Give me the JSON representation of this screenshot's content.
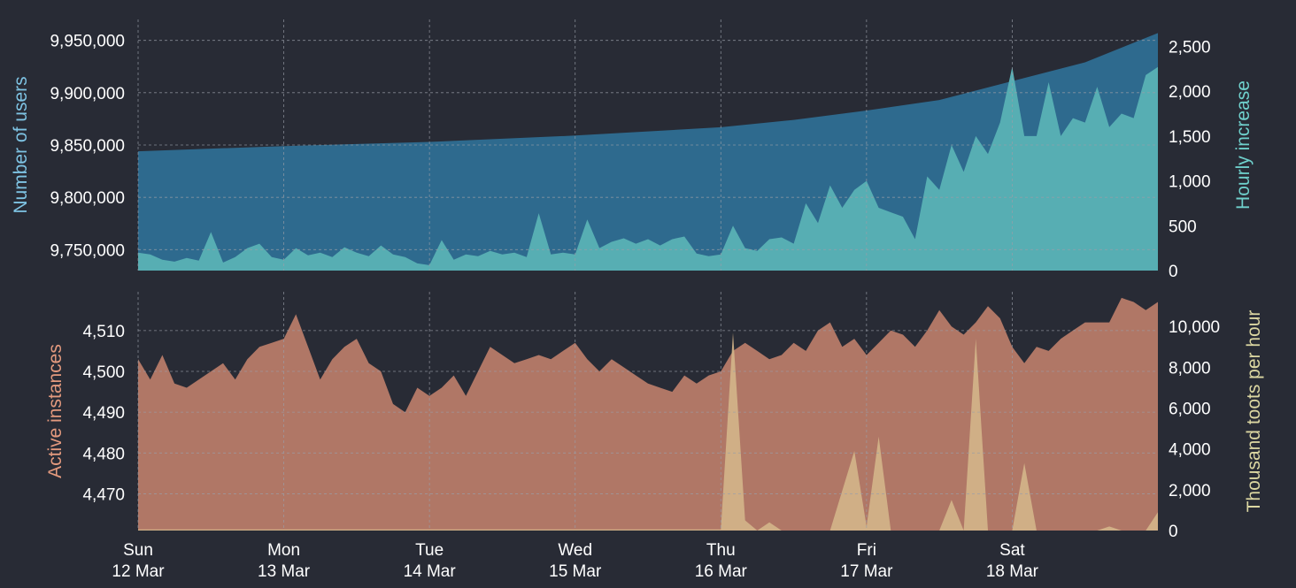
{
  "colors": {
    "background": "#282b35",
    "users_area": "#2e6a8e",
    "hourly_area": "#57aeb3",
    "instances_area": "#b07766",
    "toots_area": "#d4b58a",
    "users_label": "#7ec3e3",
    "hourly_label": "#6fd0cc",
    "instances_label": "#e49a7e",
    "toots_label": "#dcd7a2",
    "tick_text": "#ffffff",
    "grid": "#9a9ea8"
  },
  "chart_data": [
    {
      "type": "area",
      "name": "top-panel",
      "ylabel": "Number of users",
      "y2label": "Hourly increase",
      "x_range": [
        "2023-03-12T00:00",
        "2023-03-19T00:00"
      ],
      "ylim": [
        9730000,
        9970000
      ],
      "y2lim": [
        0,
        2800
      ],
      "yticks": [
        "9,750,000",
        "9,800,000",
        "9,850,000",
        "9,900,000",
        "9,950,000"
      ],
      "yticks_values": [
        9750000,
        9800000,
        9850000,
        9900000,
        9950000
      ],
      "y2ticks": [
        "0",
        "500",
        "1,000",
        "1,500",
        "2,000",
        "2,500"
      ],
      "y2ticks_values": [
        0,
        500,
        1000,
        1500,
        2000,
        2500
      ],
      "grid": true,
      "series": [
        {
          "name": "",
          "axis": "left",
          "points": [
            [
              "2023-03-12T00:00",
              9844000
            ],
            [
              "2023-03-13T00:00",
              9849000
            ],
            [
              "2023-03-14T00:00",
              9853000
            ],
            [
              "2023-03-15T00:00",
              9859000
            ],
            [
              "2023-03-16T00:00",
              9867000
            ],
            [
              "2023-03-16T12:00",
              9874000
            ],
            [
              "2023-03-17T00:00",
              9883000
            ],
            [
              "2023-03-17T12:00",
              9893000
            ],
            [
              "2023-03-18T00:00",
              9911000
            ],
            [
              "2023-03-18T12:00",
              9929000
            ],
            [
              "2023-03-19T00:00",
              9957000
            ]
          ]
        },
        {
          "name": "",
          "axis": "right",
          "points": [
            [
              "2023-03-12T00:00",
              200
            ],
            [
              "2023-03-12T02:00",
              180
            ],
            [
              "2023-03-12T04:00",
              120
            ],
            [
              "2023-03-12T06:00",
              100
            ],
            [
              "2023-03-12T08:00",
              140
            ],
            [
              "2023-03-12T10:00",
              110
            ],
            [
              "2023-03-12T12:00",
              430
            ],
            [
              "2023-03-12T14:00",
              90
            ],
            [
              "2023-03-12T16:00",
              150
            ],
            [
              "2023-03-12T18:00",
              250
            ],
            [
              "2023-03-12T20:00",
              300
            ],
            [
              "2023-03-12T22:00",
              150
            ],
            [
              "2023-03-13T00:00",
              120
            ],
            [
              "2023-03-13T02:00",
              250
            ],
            [
              "2023-03-13T04:00",
              170
            ],
            [
              "2023-03-13T06:00",
              200
            ],
            [
              "2023-03-13T08:00",
              150
            ],
            [
              "2023-03-13T10:00",
              260
            ],
            [
              "2023-03-13T12:00",
              200
            ],
            [
              "2023-03-13T14:00",
              160
            ],
            [
              "2023-03-13T16:00",
              280
            ],
            [
              "2023-03-13T18:00",
              180
            ],
            [
              "2023-03-13T20:00",
              150
            ],
            [
              "2023-03-13T22:00",
              80
            ],
            [
              "2023-03-14T00:00",
              60
            ],
            [
              "2023-03-14T02:00",
              340
            ],
            [
              "2023-03-14T04:00",
              120
            ],
            [
              "2023-03-14T06:00",
              180
            ],
            [
              "2023-03-14T08:00",
              160
            ],
            [
              "2023-03-14T10:00",
              220
            ],
            [
              "2023-03-14T12:00",
              180
            ],
            [
              "2023-03-14T14:00",
              200
            ],
            [
              "2023-03-14T16:00",
              150
            ],
            [
              "2023-03-14T18:00",
              640
            ],
            [
              "2023-03-14T20:00",
              180
            ],
            [
              "2023-03-14T22:00",
              200
            ],
            [
              "2023-03-15T00:00",
              180
            ],
            [
              "2023-03-15T02:00",
              570
            ],
            [
              "2023-03-15T04:00",
              250
            ],
            [
              "2023-03-15T06:00",
              320
            ],
            [
              "2023-03-15T08:00",
              360
            ],
            [
              "2023-03-15T10:00",
              300
            ],
            [
              "2023-03-15T12:00",
              350
            ],
            [
              "2023-03-15T14:00",
              280
            ],
            [
              "2023-03-15T16:00",
              350
            ],
            [
              "2023-03-15T18:00",
              380
            ],
            [
              "2023-03-15T20:00",
              190
            ],
            [
              "2023-03-15T22:00",
              160
            ],
            [
              "2023-03-16T00:00",
              180
            ],
            [
              "2023-03-16T02:00",
              500
            ],
            [
              "2023-03-16T04:00",
              250
            ],
            [
              "2023-03-16T06:00",
              220
            ],
            [
              "2023-03-16T08:00",
              350
            ],
            [
              "2023-03-16T10:00",
              370
            ],
            [
              "2023-03-16T12:00",
              300
            ],
            [
              "2023-03-16T14:00",
              750
            ],
            [
              "2023-03-16T16:00",
              530
            ],
            [
              "2023-03-16T18:00",
              950
            ],
            [
              "2023-03-16T20:00",
              700
            ],
            [
              "2023-03-16T22:00",
              900
            ],
            [
              "2023-03-17T00:00",
              1000
            ],
            [
              "2023-03-17T02:00",
              700
            ],
            [
              "2023-03-17T04:00",
              650
            ],
            [
              "2023-03-17T06:00",
              600
            ],
            [
              "2023-03-17T08:00",
              350
            ],
            [
              "2023-03-17T10:00",
              1050
            ],
            [
              "2023-03-17T12:00",
              900
            ],
            [
              "2023-03-17T14:00",
              1400
            ],
            [
              "2023-03-17T16:00",
              1100
            ],
            [
              "2023-03-17T18:00",
              1500
            ],
            [
              "2023-03-17T20:00",
              1300
            ],
            [
              "2023-03-17T22:00",
              1650
            ],
            [
              "2023-03-18T00:00",
              2270
            ],
            [
              "2023-03-18T02:00",
              1500
            ],
            [
              "2023-03-18T04:00",
              1500
            ],
            [
              "2023-03-18T06:00",
              2100
            ],
            [
              "2023-03-18T08:00",
              1500
            ],
            [
              "2023-03-18T10:00",
              1700
            ],
            [
              "2023-03-18T12:00",
              1650
            ],
            [
              "2023-03-18T14:00",
              2050
            ],
            [
              "2023-03-18T16:00",
              1600
            ],
            [
              "2023-03-18T18:00",
              1750
            ],
            [
              "2023-03-18T20:00",
              1700
            ],
            [
              "2023-03-18T22:00",
              2180
            ],
            [
              "2023-03-19T00:00",
              2270
            ]
          ]
        }
      ]
    },
    {
      "type": "area",
      "name": "bottom-panel",
      "ylabel": "Active instances",
      "y2label": "Thousand toots per hour",
      "x_range": [
        "2023-03-12T00:00",
        "2023-03-19T00:00"
      ],
      "ylim": [
        4461,
        4519.5
      ],
      "y2lim": [
        0,
        11700
      ],
      "yticks": [
        "4,470",
        "4,480",
        "4,490",
        "4,500",
        "4,510"
      ],
      "yticks_values": [
        4470,
        4480,
        4490,
        4500,
        4510
      ],
      "y2ticks": [
        "0",
        "2,000",
        "4,000",
        "6,000",
        "8,000",
        "10,000"
      ],
      "y2ticks_values": [
        0,
        2000,
        4000,
        6000,
        8000,
        10000
      ],
      "xticks_day": [
        "Sun",
        "Mon",
        "Tue",
        "Wed",
        "Thu",
        "Fri",
        "Sat"
      ],
      "xticks_date": [
        "12 Mar",
        "13 Mar",
        "14 Mar",
        "15 Mar",
        "16 Mar",
        "17 Mar",
        "18 Mar"
      ],
      "xticks_values": [
        "2023-03-12T00:00",
        "2023-03-13T00:00",
        "2023-03-14T00:00",
        "2023-03-15T00:00",
        "2023-03-16T00:00",
        "2023-03-17T00:00",
        "2023-03-18T00:00"
      ],
      "grid": true,
      "series": [
        {
          "name": "",
          "axis": "left",
          "points": [
            [
              "2023-03-12T00:00",
              4503
            ],
            [
              "2023-03-12T02:00",
              4498
            ],
            [
              "2023-03-12T04:00",
              4504
            ],
            [
              "2023-03-12T06:00",
              4497
            ],
            [
              "2023-03-12T08:00",
              4496
            ],
            [
              "2023-03-12T10:00",
              4498
            ],
            [
              "2023-03-12T12:00",
              4500
            ],
            [
              "2023-03-12T14:00",
              4502
            ],
            [
              "2023-03-12T16:00",
              4498
            ],
            [
              "2023-03-12T18:00",
              4503
            ],
            [
              "2023-03-12T20:00",
              4506
            ],
            [
              "2023-03-12T22:00",
              4507
            ],
            [
              "2023-03-13T00:00",
              4508
            ],
            [
              "2023-03-13T02:00",
              4514
            ],
            [
              "2023-03-13T04:00",
              4506
            ],
            [
              "2023-03-13T06:00",
              4498
            ],
            [
              "2023-03-13T08:00",
              4503
            ],
            [
              "2023-03-13T10:00",
              4506
            ],
            [
              "2023-03-13T12:00",
              4508
            ],
            [
              "2023-03-13T14:00",
              4502
            ],
            [
              "2023-03-13T16:00",
              4500
            ],
            [
              "2023-03-13T18:00",
              4492
            ],
            [
              "2023-03-13T20:00",
              4490
            ],
            [
              "2023-03-13T22:00",
              4496
            ],
            [
              "2023-03-14T00:00",
              4494
            ],
            [
              "2023-03-14T02:00",
              4496
            ],
            [
              "2023-03-14T04:00",
              4499
            ],
            [
              "2023-03-14T06:00",
              4494
            ],
            [
              "2023-03-14T08:00",
              4500
            ],
            [
              "2023-03-14T10:00",
              4506
            ],
            [
              "2023-03-14T12:00",
              4504
            ],
            [
              "2023-03-14T14:00",
              4502
            ],
            [
              "2023-03-14T16:00",
              4503
            ],
            [
              "2023-03-14T18:00",
              4504
            ],
            [
              "2023-03-14T20:00",
              4503
            ],
            [
              "2023-03-14T22:00",
              4505
            ],
            [
              "2023-03-15T00:00",
              4507
            ],
            [
              "2023-03-15T02:00",
              4503
            ],
            [
              "2023-03-15T04:00",
              4500
            ],
            [
              "2023-03-15T06:00",
              4503
            ],
            [
              "2023-03-15T08:00",
              4501
            ],
            [
              "2023-03-15T10:00",
              4499
            ],
            [
              "2023-03-15T12:00",
              4497
            ],
            [
              "2023-03-15T14:00",
              4496
            ],
            [
              "2023-03-15T16:00",
              4495
            ],
            [
              "2023-03-15T18:00",
              4499
            ],
            [
              "2023-03-15T20:00",
              4497
            ],
            [
              "2023-03-15T22:00",
              4499
            ],
            [
              "2023-03-16T00:00",
              4500
            ],
            [
              "2023-03-16T02:00",
              4505
            ],
            [
              "2023-03-16T04:00",
              4507
            ],
            [
              "2023-03-16T06:00",
              4505
            ],
            [
              "2023-03-16T08:00",
              4503
            ],
            [
              "2023-03-16T10:00",
              4504
            ],
            [
              "2023-03-16T12:00",
              4507
            ],
            [
              "2023-03-16T14:00",
              4505
            ],
            [
              "2023-03-16T16:00",
              4510
            ],
            [
              "2023-03-16T18:00",
              4512
            ],
            [
              "2023-03-16T20:00",
              4506
            ],
            [
              "2023-03-16T22:00",
              4508
            ],
            [
              "2023-03-17T00:00",
              4504
            ],
            [
              "2023-03-17T02:00",
              4507
            ],
            [
              "2023-03-17T04:00",
              4510
            ],
            [
              "2023-03-17T06:00",
              4509
            ],
            [
              "2023-03-17T08:00",
              4506
            ],
            [
              "2023-03-17T10:00",
              4510
            ],
            [
              "2023-03-17T12:00",
              4515
            ],
            [
              "2023-03-17T14:00",
              4511
            ],
            [
              "2023-03-17T16:00",
              4509
            ],
            [
              "2023-03-17T18:00",
              4512
            ],
            [
              "2023-03-17T20:00",
              4516
            ],
            [
              "2023-03-17T22:00",
              4513
            ],
            [
              "2023-03-18T00:00",
              4506
            ],
            [
              "2023-03-18T02:00",
              4502
            ],
            [
              "2023-03-18T04:00",
              4506
            ],
            [
              "2023-03-18T06:00",
              4505
            ],
            [
              "2023-03-18T08:00",
              4508
            ],
            [
              "2023-03-18T10:00",
              4510
            ],
            [
              "2023-03-18T12:00",
              4512
            ],
            [
              "2023-03-18T14:00",
              4512
            ],
            [
              "2023-03-18T16:00",
              4512
            ],
            [
              "2023-03-18T18:00",
              4518
            ],
            [
              "2023-03-18T20:00",
              4517
            ],
            [
              "2023-03-18T22:00",
              4515
            ],
            [
              "2023-03-19T00:00",
              4517
            ]
          ]
        },
        {
          "name": "",
          "axis": "right",
          "points": [
            [
              "2023-03-12T00:00",
              50
            ],
            [
              "2023-03-15T22:00",
              50
            ],
            [
              "2023-03-16T00:00",
              50
            ],
            [
              "2023-03-16T02:00",
              9700
            ],
            [
              "2023-03-16T04:00",
              500
            ],
            [
              "2023-03-16T06:00",
              0
            ],
            [
              "2023-03-16T08:00",
              400
            ],
            [
              "2023-03-16T10:00",
              0
            ],
            [
              "2023-03-16T18:00",
              0
            ],
            [
              "2023-03-16T22:00",
              3900
            ],
            [
              "2023-03-17T00:00",
              200
            ],
            [
              "2023-03-17T02:00",
              4600
            ],
            [
              "2023-03-17T04:00",
              0
            ],
            [
              "2023-03-17T12:00",
              0
            ],
            [
              "2023-03-17T14:00",
              1500
            ],
            [
              "2023-03-17T16:00",
              0
            ],
            [
              "2023-03-17T18:00",
              9400
            ],
            [
              "2023-03-17T20:00",
              0
            ],
            [
              "2023-03-18T00:00",
              0
            ],
            [
              "2023-03-18T02:00",
              3300
            ],
            [
              "2023-03-18T04:00",
              0
            ],
            [
              "2023-03-18T14:00",
              0
            ],
            [
              "2023-03-18T16:00",
              200
            ],
            [
              "2023-03-18T18:00",
              0
            ],
            [
              "2023-03-18T22:00",
              0
            ],
            [
              "2023-03-19T00:00",
              900
            ]
          ]
        }
      ]
    }
  ]
}
